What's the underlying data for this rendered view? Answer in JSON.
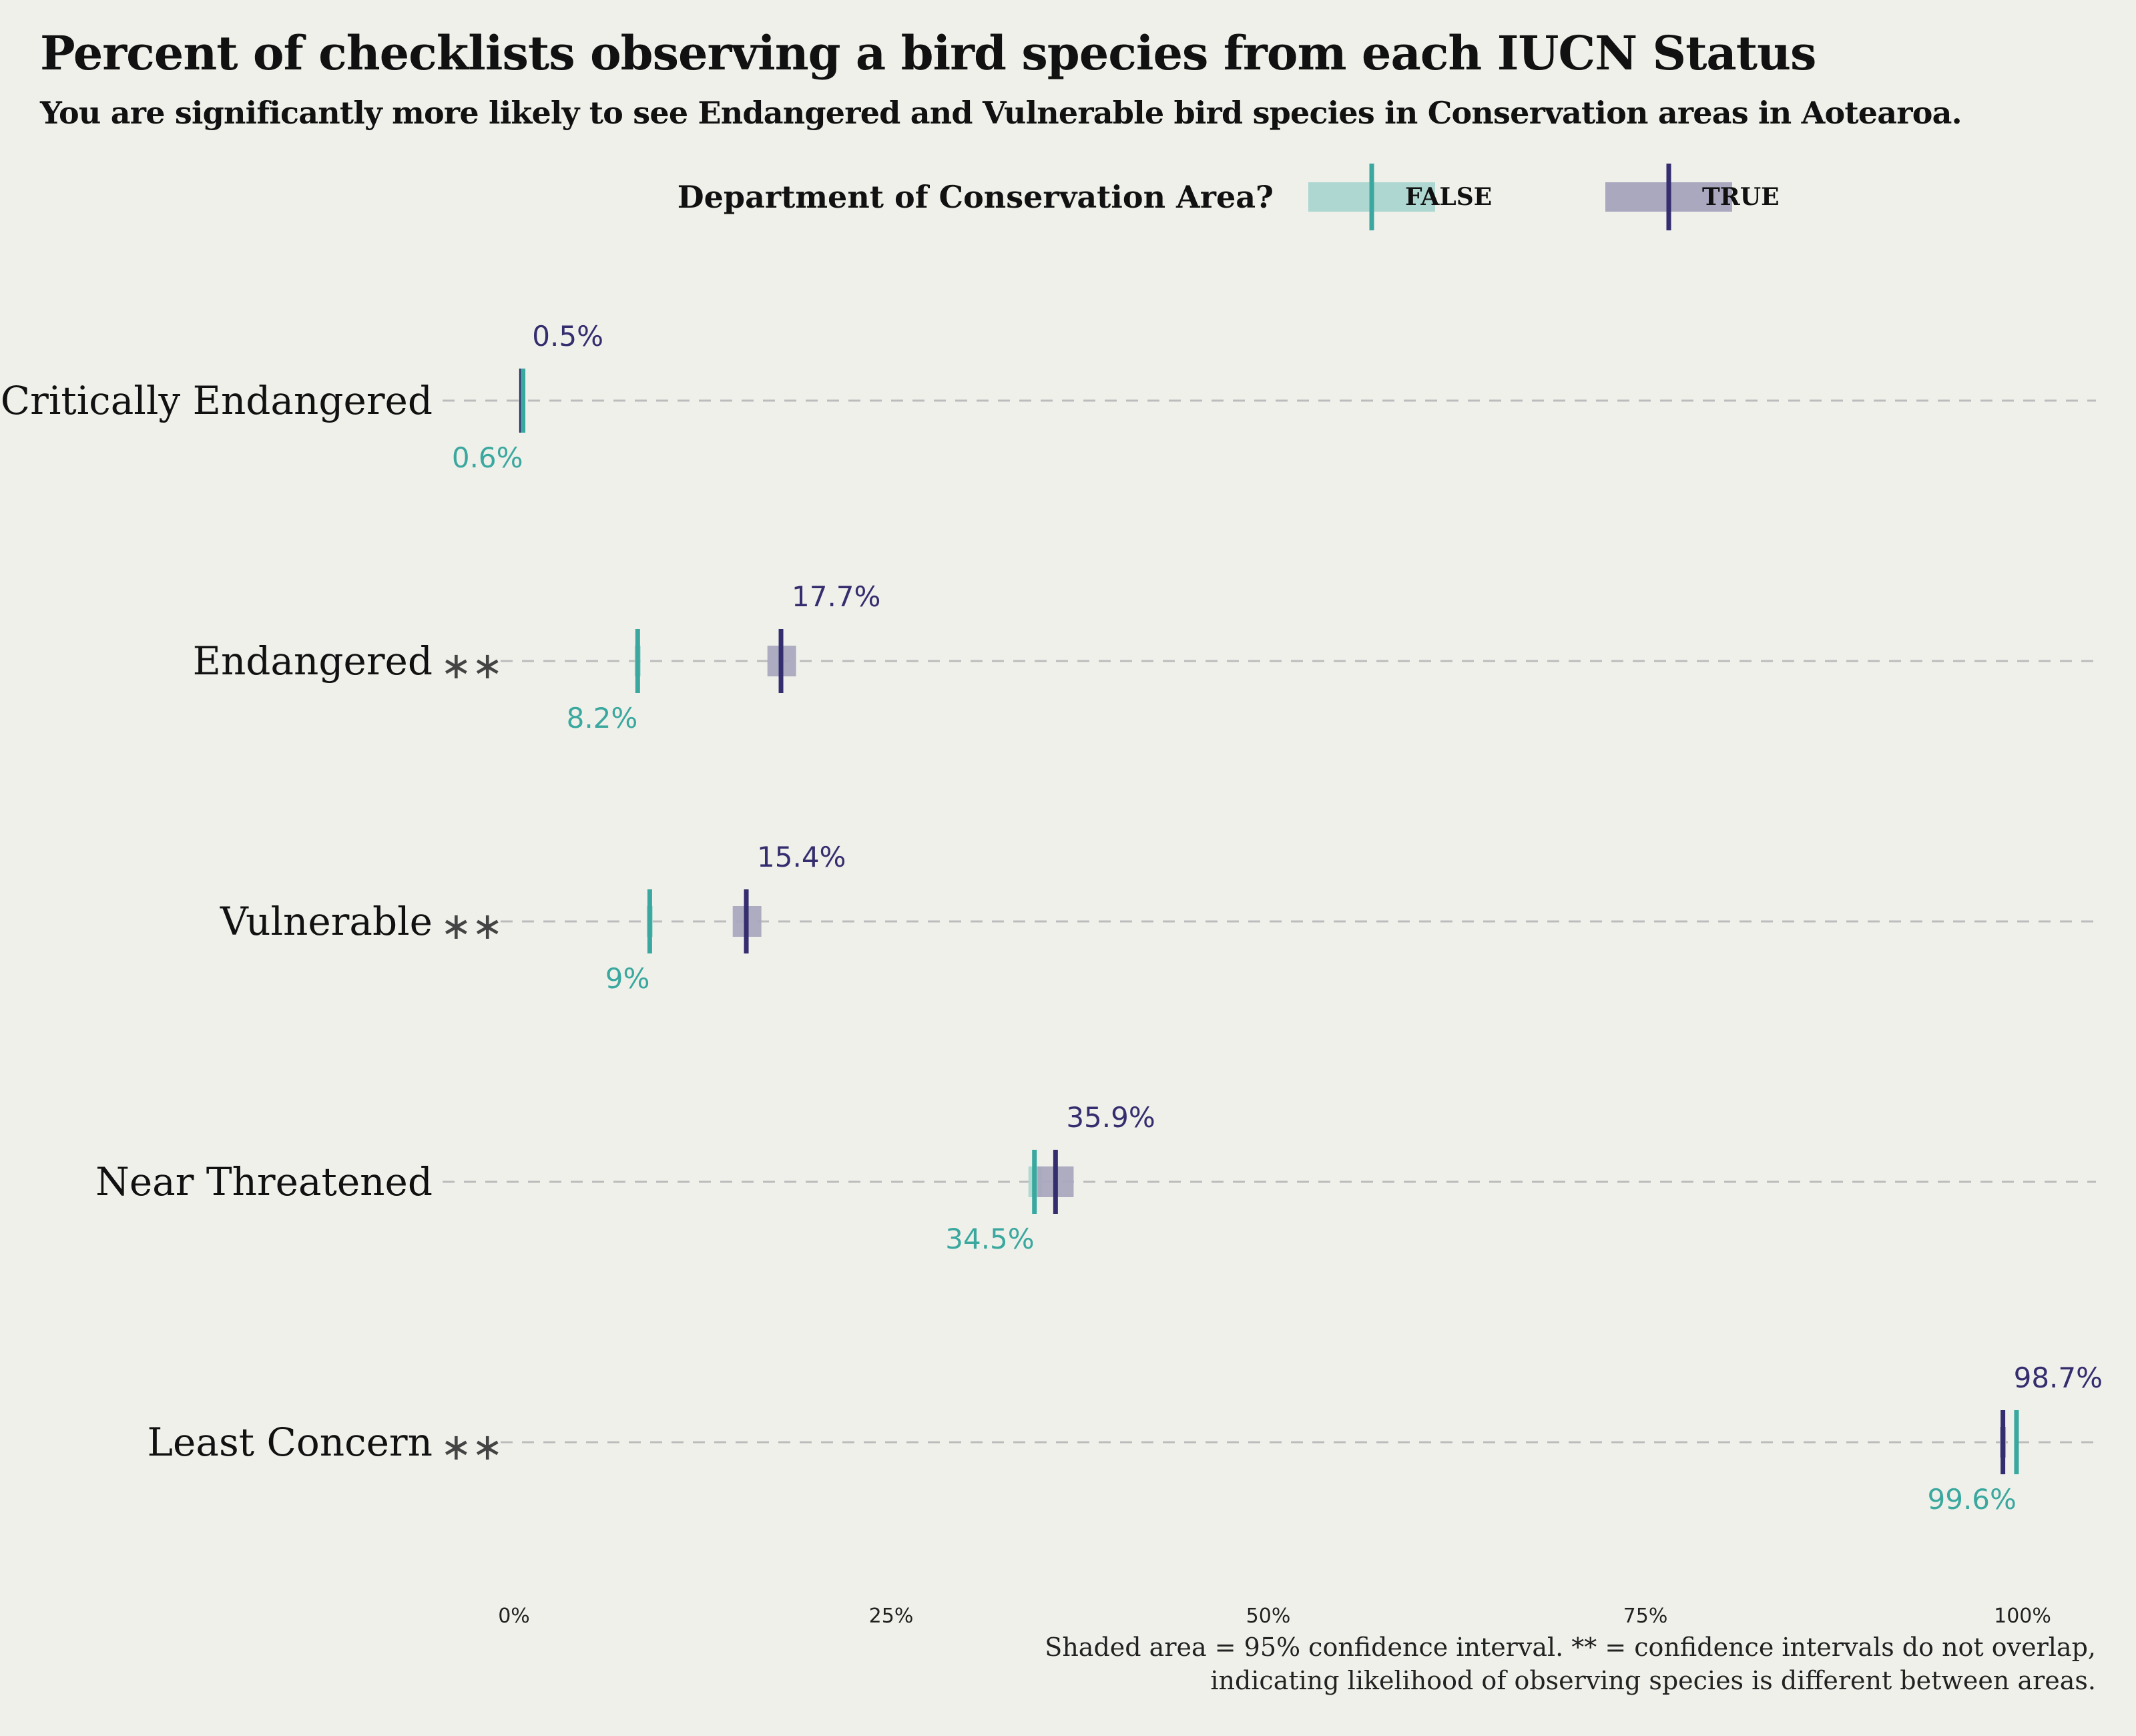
{
  "title": "Percent of checklists observing a bird species from each IUCN Status",
  "subtitle": "You are significantly more likely to see Endangered and Vulnerable bird species in Conservation areas in Aotearoa.",
  "caption": {
    "line1": "Shaded area = 95% confidence interval. ** = confidence intervals do not overlap,",
    "line2": "indicating likelihood of observing species is different between areas."
  },
  "colors": {
    "background": "#f0f0eb",
    "false": "#3aa89e",
    "true": "#342d6e",
    "false_ci": "#aed7d1",
    "true_ci": "#a9a8bf",
    "gridline": "#bcbcbc",
    "text": "#111111"
  },
  "chart_data": {
    "type": "dot-range",
    "legend": {
      "title": "Department of Conservation Area?",
      "position": "top",
      "entries": [
        {
          "key": "false",
          "label": "FALSE"
        },
        {
          "key": "true",
          "label": "TRUE"
        }
      ]
    },
    "xlim": [
      0,
      100
    ],
    "x_ticks": [
      0,
      25,
      50,
      75,
      100
    ],
    "x_tick_labels": [
      "0%",
      "25%",
      "50%",
      "75%",
      "100%"
    ],
    "categories": [
      "Critically Endangered",
      "Endangered",
      "Vulnerable",
      "Near Threatened",
      "Least Concern"
    ],
    "significance_marker": "∗∗",
    "rows": [
      {
        "category": "Critically Endangered",
        "significant": false,
        "false": {
          "value": 0.6,
          "label": "0.6%",
          "ci": [
            0.5,
            0.7
          ]
        },
        "true": {
          "value": 0.5,
          "label": "0.5%",
          "ci": [
            0.4,
            0.6
          ]
        }
      },
      {
        "category": "Endangered",
        "significant": true,
        "false": {
          "value": 8.2,
          "label": "8.2%",
          "ci": [
            8.0,
            8.4
          ]
        },
        "true": {
          "value": 17.7,
          "label": "17.7%",
          "ci": [
            16.8,
            18.7
          ]
        }
      },
      {
        "category": "Vulnerable",
        "significant": true,
        "false": {
          "value": 9,
          "label": "9%",
          "ci": [
            8.8,
            9.2
          ]
        },
        "true": {
          "value": 15.4,
          "label": "15.4%",
          "ci": [
            14.5,
            16.4
          ]
        }
      },
      {
        "category": "Near Threatened",
        "significant": false,
        "false": {
          "value": 34.5,
          "label": "34.5%",
          "ci": [
            34.1,
            35.0
          ]
        },
        "true": {
          "value": 35.9,
          "label": "35.9%",
          "ci": [
            34.7,
            37.1
          ]
        }
      },
      {
        "category": "Least Concern",
        "significant": true,
        "false": {
          "value": 99.6,
          "label": "99.6%",
          "ci": [
            99.5,
            99.7
          ]
        },
        "true": {
          "value": 98.7,
          "label": "98.7%",
          "ci": [
            98.5,
            98.9
          ]
        }
      }
    ]
  }
}
